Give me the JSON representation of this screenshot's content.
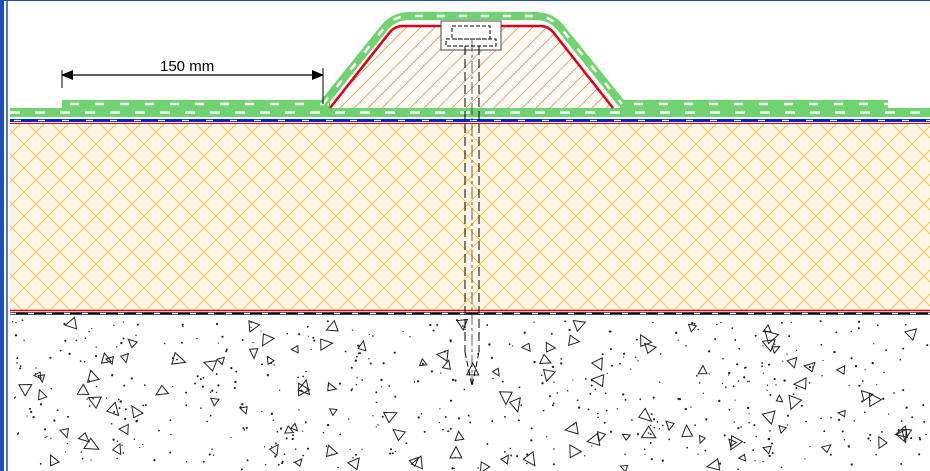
{
  "dimension": {
    "label": "150 mm"
  },
  "colors": {
    "frame": "#1f4fb4",
    "membrane_green": "#6fd46f",
    "membrane_dash": "#ffffff",
    "red_line": "#e0001a",
    "blue_line": "#0a1fd6",
    "insulation_fill": "#fdf6e6",
    "insulation_hatch": "#f0be35",
    "batten_hatch": "#c8a070",
    "concrete_fill": "#ffffff",
    "concrete_mark": "#222222",
    "screw": "#000000"
  }
}
